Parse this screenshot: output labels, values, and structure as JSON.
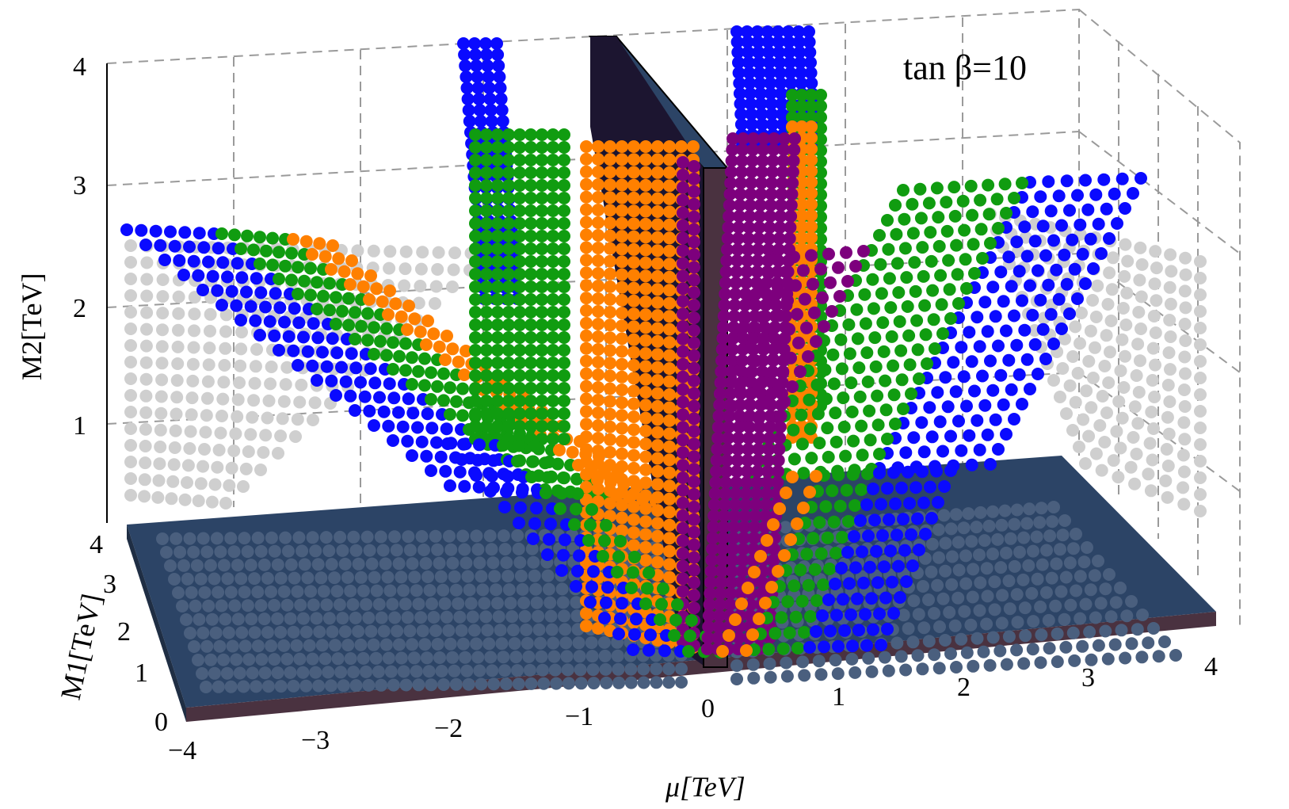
{
  "chart_data": {
    "type": "scatter",
    "projection": "3d",
    "annotation": "tan β=10",
    "xlabel": "μ[TeV]",
    "ylabel": "M1[TeV]",
    "zlabel": "M2[TeV]",
    "xlim": [
      -4,
      4
    ],
    "ylim": [
      0,
      4
    ],
    "zlim": [
      0,
      4
    ],
    "x_ticks": [
      "−4",
      "−3",
      "−2",
      "−1",
      "0",
      "1",
      "2",
      "3",
      "4"
    ],
    "y_ticks": [
      "0",
      "1",
      "2",
      "3",
      "4"
    ],
    "z_ticks": [
      "1",
      "2",
      "3",
      "4"
    ],
    "grid": true,
    "colors": {
      "blue": "#0a0aff",
      "green": "#109c10",
      "orange": "#ff8000",
      "purple": "#7d007d",
      "gray": "#cfcfcf",
      "floor": "#2c4466",
      "wall": "#4a3240"
    },
    "series": [
      {
        "color": "blue",
        "description_points": [
          {
            "x": -4.0,
            "M1": 4.0,
            "M2": 2.5
          },
          {
            "x": -3.5,
            "M1": 3.5,
            "M2": 2.3
          },
          {
            "x": -3.0,
            "M1": 3.0,
            "M2": 1.6
          },
          {
            "x": -2.0,
            "M1": 2.0,
            "M2": 1.0
          },
          {
            "x": -1.5,
            "M1": 1.0,
            "M2": 0.5
          },
          {
            "x": -1.0,
            "M1": 0.3,
            "M2": 0.2
          },
          {
            "x": -2.1,
            "M1": 4.0,
            "M2": 4.0
          },
          {
            "x": 0.1,
            "M1": 4.0,
            "M2": 4.0
          },
          {
            "x": 1.5,
            "M1": 1.0,
            "M2": 0.6
          },
          {
            "x": 2.5,
            "M1": 2.5,
            "M2": 1.4
          },
          {
            "x": 3.5,
            "M1": 3.5,
            "M2": 2.0
          },
          {
            "x": 4.0,
            "M1": 4.0,
            "M2": 2.6
          }
        ]
      },
      {
        "color": "green",
        "description_points": [
          {
            "x": -3.0,
            "M1": 4.0,
            "M2": 2.6
          },
          {
            "x": -2.5,
            "M1": 3.0,
            "M2": 1.7
          },
          {
            "x": -2.0,
            "M1": 2.5,
            "M2": 1.4
          },
          {
            "x": -1.5,
            "M1": 4.0,
            "M2": 3.5
          },
          {
            "x": -1.0,
            "M1": 0.5,
            "M2": 0.3
          },
          {
            "x": 0.6,
            "M1": 4.0,
            "M2": 3.9
          },
          {
            "x": 1.0,
            "M1": 1.0,
            "M2": 0.8
          },
          {
            "x": 2.0,
            "M1": 3.0,
            "M2": 2.3
          },
          {
            "x": 3.0,
            "M1": 4.0,
            "M2": 3.0
          }
        ]
      },
      {
        "color": "orange",
        "description_points": [
          {
            "x": -2.4,
            "M1": 3.0,
            "M2": 1.9
          },
          {
            "x": -1.4,
            "M1": 2.0,
            "M2": 1.3
          },
          {
            "x": -0.9,
            "M1": 3.8,
            "M2": 3.2
          },
          {
            "x": -0.5,
            "M1": 0.3,
            "M2": 0.5
          },
          {
            "x": 0.6,
            "M1": 3.5,
            "M2": 3.6
          },
          {
            "x": 0.3,
            "M1": 0.3,
            "M2": 0.4
          },
          {
            "x": 1.5,
            "M1": 4.0,
            "M2": 2.8
          }
        ]
      },
      {
        "color": "purple",
        "description_points": [
          {
            "x": -0.1,
            "M1": 3.0,
            "M2": 3.0
          },
          {
            "x": 0.1,
            "M1": 0.2,
            "M2": 0.3
          },
          {
            "x": 0.4,
            "M1": 4.0,
            "M2": 3.3
          },
          {
            "x": 1.0,
            "M1": 3.5,
            "M2": 2.7
          },
          {
            "x": 1.4,
            "M1": 1.5,
            "M2": 1.2
          }
        ]
      },
      {
        "color": "gray",
        "description_points": [
          {
            "x": -4.0,
            "M1": 4.0,
            "M2": 0.2
          },
          {
            "x": -4.0,
            "M1": 4.0,
            "M2": 2.0
          },
          {
            "x": 4.0,
            "M1": 4.0,
            "M2": 0.2
          },
          {
            "x": 4.0,
            "M1": 4.0,
            "M2": 2.3
          }
        ]
      }
    ]
  }
}
